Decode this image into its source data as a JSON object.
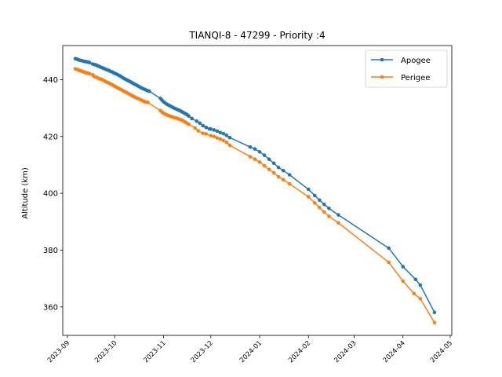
{
  "chart_data": {
    "type": "line",
    "title": "TIANQI-8 - 47299 - Priority :4",
    "xlabel": "",
    "ylabel": "Altitude (km)",
    "xlim": [
      "2023-08-29",
      "2024-05-02"
    ],
    "ylim": [
      350,
      452
    ],
    "x_ticks": [
      "2023-09",
      "2023-10",
      "2023-11",
      "2023-12",
      "2024-01",
      "2024-02",
      "2024-03",
      "2024-04",
      "2024-05"
    ],
    "y_ticks": [
      360,
      380,
      400,
      420,
      440
    ],
    "grid": false,
    "legend_position": "top-right",
    "series": [
      {
        "name": "Apogee",
        "color": "#1f77b4",
        "points": [
          [
            "2023-09-06",
            447.4
          ],
          [
            "2023-09-07",
            447.2
          ],
          [
            "2023-09-08",
            447.0
          ],
          [
            "2023-09-09",
            446.8
          ],
          [
            "2023-09-10",
            446.7
          ],
          [
            "2023-09-11",
            446.5
          ],
          [
            "2023-09-12",
            446.4
          ],
          [
            "2023-09-13",
            446.3
          ],
          [
            "2023-09-14",
            446.2
          ],
          [
            "2023-09-15",
            446.0
          ],
          [
            "2023-09-17",
            445.5
          ],
          [
            "2023-09-18",
            445.3
          ],
          [
            "2023-09-19",
            445.2
          ],
          [
            "2023-09-20",
            444.9
          ],
          [
            "2023-09-21",
            444.7
          ],
          [
            "2023-09-22",
            444.4
          ],
          [
            "2023-09-23",
            444.2
          ],
          [
            "2023-09-24",
            444.0
          ],
          [
            "2023-09-25",
            443.7
          ],
          [
            "2023-09-26",
            443.5
          ],
          [
            "2023-09-27",
            443.3
          ],
          [
            "2023-09-28",
            443.0
          ],
          [
            "2023-09-29",
            442.8
          ],
          [
            "2023-09-30",
            442.5
          ],
          [
            "2023-10-01",
            442.2
          ],
          [
            "2023-10-02",
            442.0
          ],
          [
            "2023-10-03",
            441.7
          ],
          [
            "2023-10-04",
            441.4
          ],
          [
            "2023-10-05",
            441.1
          ],
          [
            "2023-10-06",
            440.7
          ],
          [
            "2023-10-07",
            440.4
          ],
          [
            "2023-10-08",
            440.1
          ],
          [
            "2023-10-09",
            439.8
          ],
          [
            "2023-10-10",
            439.5
          ],
          [
            "2023-10-11",
            439.2
          ],
          [
            "2023-10-12",
            438.9
          ],
          [
            "2023-10-13",
            438.6
          ],
          [
            "2023-10-14",
            438.3
          ],
          [
            "2023-10-15",
            438.0
          ],
          [
            "2023-10-16",
            437.7
          ],
          [
            "2023-10-17",
            437.4
          ],
          [
            "2023-10-18",
            437.1
          ],
          [
            "2023-10-19",
            436.8
          ],
          [
            "2023-10-20",
            436.6
          ],
          [
            "2023-10-21",
            436.3
          ],
          [
            "2023-10-22",
            436.1
          ],
          [
            "2023-10-23",
            435.9
          ],
          [
            "2023-10-30",
            433.4
          ],
          [
            "2023-10-31",
            432.8
          ],
          [
            "2023-11-01",
            432.2
          ],
          [
            "2023-11-02",
            431.8
          ],
          [
            "2023-11-03",
            431.4
          ],
          [
            "2023-11-04",
            431.1
          ],
          [
            "2023-11-05",
            430.8
          ],
          [
            "2023-11-06",
            430.5
          ],
          [
            "2023-11-07",
            430.2
          ],
          [
            "2023-11-08",
            429.9
          ],
          [
            "2023-11-09",
            429.7
          ],
          [
            "2023-11-10",
            429.4
          ],
          [
            "2023-11-11",
            429.2
          ],
          [
            "2023-11-12",
            428.9
          ],
          [
            "2023-11-13",
            428.6
          ],
          [
            "2023-11-14",
            428.3
          ],
          [
            "2023-11-15",
            428.0
          ],
          [
            "2023-11-16",
            427.6
          ],
          [
            "2023-11-17",
            427.2
          ],
          [
            "2023-11-19",
            426.3
          ],
          [
            "2023-11-22",
            425.4
          ],
          [
            "2023-11-24",
            424.7
          ],
          [
            "2023-11-26",
            423.8
          ],
          [
            "2023-11-28",
            423.2
          ],
          [
            "2023-11-30",
            422.7
          ],
          [
            "2023-12-01",
            422.6
          ],
          [
            "2023-12-03",
            422.3
          ],
          [
            "2023-12-05",
            421.9
          ],
          [
            "2023-12-07",
            421.4
          ],
          [
            "2023-12-09",
            421.0
          ],
          [
            "2023-12-11",
            420.4
          ],
          [
            "2023-12-13",
            419.6
          ],
          [
            "2023-12-26",
            416.3
          ],
          [
            "2023-12-29",
            415.6
          ],
          [
            "2024-01-01",
            414.6
          ],
          [
            "2024-01-04",
            413.4
          ],
          [
            "2024-01-07",
            412.0
          ],
          [
            "2024-01-10",
            410.6
          ],
          [
            "2024-01-13",
            409.1
          ],
          [
            "2024-01-16",
            408.0
          ],
          [
            "2024-01-20",
            406.5
          ],
          [
            "2024-02-01",
            401.4
          ],
          [
            "2024-02-05",
            399.2
          ],
          [
            "2024-02-08",
            397.6
          ],
          [
            "2024-02-11",
            396.1
          ],
          [
            "2024-02-14",
            394.7
          ],
          [
            "2024-02-20",
            392.4
          ],
          [
            "2024-03-23",
            380.7
          ],
          [
            "2024-04-01",
            374.2
          ],
          [
            "2024-04-09",
            369.7
          ],
          [
            "2024-04-12",
            367.7
          ],
          [
            "2024-04-21",
            358.1
          ]
        ]
      },
      {
        "name": "Perigee",
        "color": "#ff7f0e",
        "points": [
          [
            "2023-09-06",
            443.8
          ],
          [
            "2023-09-07",
            443.6
          ],
          [
            "2023-09-08",
            443.4
          ],
          [
            "2023-09-09",
            443.2
          ],
          [
            "2023-09-10",
            443.0
          ],
          [
            "2023-09-11",
            442.8
          ],
          [
            "2023-09-12",
            442.6
          ],
          [
            "2023-09-13",
            442.4
          ],
          [
            "2023-09-14",
            442.3
          ],
          [
            "2023-09-15",
            442.1
          ],
          [
            "2023-09-17",
            441.7
          ],
          [
            "2023-09-18",
            441.1
          ],
          [
            "2023-09-19",
            440.9
          ],
          [
            "2023-09-20",
            440.7
          ],
          [
            "2023-09-21",
            440.4
          ],
          [
            "2023-09-22",
            440.2
          ],
          [
            "2023-09-23",
            440.0
          ],
          [
            "2023-09-24",
            439.7
          ],
          [
            "2023-09-25",
            439.4
          ],
          [
            "2023-09-26",
            439.1
          ],
          [
            "2023-09-27",
            438.9
          ],
          [
            "2023-09-28",
            438.6
          ],
          [
            "2023-09-29",
            438.3
          ],
          [
            "2023-09-30",
            438.0
          ],
          [
            "2023-10-01",
            437.7
          ],
          [
            "2023-10-02",
            437.4
          ],
          [
            "2023-10-03",
            437.1
          ],
          [
            "2023-10-04",
            436.8
          ],
          [
            "2023-10-05",
            436.5
          ],
          [
            "2023-10-06",
            436.2
          ],
          [
            "2023-10-07",
            435.9
          ],
          [
            "2023-10-08",
            435.6
          ],
          [
            "2023-10-09",
            435.3
          ],
          [
            "2023-10-10",
            435.0
          ],
          [
            "2023-10-11",
            434.7
          ],
          [
            "2023-10-12",
            434.4
          ],
          [
            "2023-10-13",
            434.1
          ],
          [
            "2023-10-14",
            433.8
          ],
          [
            "2023-10-15",
            433.5
          ],
          [
            "2023-10-16",
            433.3
          ],
          [
            "2023-10-17",
            433.0
          ],
          [
            "2023-10-18",
            432.8
          ],
          [
            "2023-10-19",
            432.5
          ],
          [
            "2023-10-20",
            432.3
          ],
          [
            "2023-10-21",
            432.1
          ],
          [
            "2023-10-22",
            432.0
          ],
          [
            "2023-10-30",
            429.1
          ],
          [
            "2023-10-31",
            428.6
          ],
          [
            "2023-11-01",
            428.2
          ],
          [
            "2023-11-02",
            427.9
          ],
          [
            "2023-11-03",
            427.6
          ],
          [
            "2023-11-04",
            427.4
          ],
          [
            "2023-11-05",
            427.2
          ],
          [
            "2023-11-06",
            427.0
          ],
          [
            "2023-11-07",
            426.8
          ],
          [
            "2023-11-08",
            426.6
          ],
          [
            "2023-11-09",
            426.5
          ],
          [
            "2023-11-10",
            426.3
          ],
          [
            "2023-11-11",
            426.1
          ],
          [
            "2023-11-12",
            425.9
          ],
          [
            "2023-11-13",
            425.7
          ],
          [
            "2023-11-14",
            425.3
          ],
          [
            "2023-11-15",
            425.0
          ],
          [
            "2023-11-16",
            424.6
          ],
          [
            "2023-11-17",
            424.3
          ],
          [
            "2023-11-21",
            423.0
          ],
          [
            "2023-11-23",
            422.0
          ],
          [
            "2023-11-26",
            421.1
          ],
          [
            "2023-11-28",
            420.9
          ],
          [
            "2023-12-01",
            420.3
          ],
          [
            "2023-12-03",
            420.0
          ],
          [
            "2023-12-05",
            419.5
          ],
          [
            "2023-12-07",
            419.1
          ],
          [
            "2023-12-09",
            418.6
          ],
          [
            "2023-12-11",
            418.0
          ],
          [
            "2023-12-13",
            416.9
          ],
          [
            "2023-12-26",
            412.9
          ],
          [
            "2023-12-29",
            412.0
          ],
          [
            "2024-01-01",
            411.0
          ],
          [
            "2024-01-04",
            409.7
          ],
          [
            "2024-01-07",
            408.4
          ],
          [
            "2024-01-10",
            407.2
          ],
          [
            "2024-01-13",
            405.8
          ],
          [
            "2024-01-16",
            404.8
          ],
          [
            "2024-01-20",
            403.3
          ],
          [
            "2024-02-01",
            398.8
          ],
          [
            "2024-02-05",
            396.6
          ],
          [
            "2024-02-08",
            395.0
          ],
          [
            "2024-02-11",
            393.4
          ],
          [
            "2024-02-14",
            391.9
          ],
          [
            "2024-02-20",
            389.6
          ],
          [
            "2024-03-23",
            375.7
          ],
          [
            "2024-04-01",
            369.1
          ],
          [
            "2024-04-08",
            364.7
          ],
          [
            "2024-04-12",
            362.9
          ],
          [
            "2024-04-21",
            354.5
          ]
        ]
      }
    ]
  }
}
